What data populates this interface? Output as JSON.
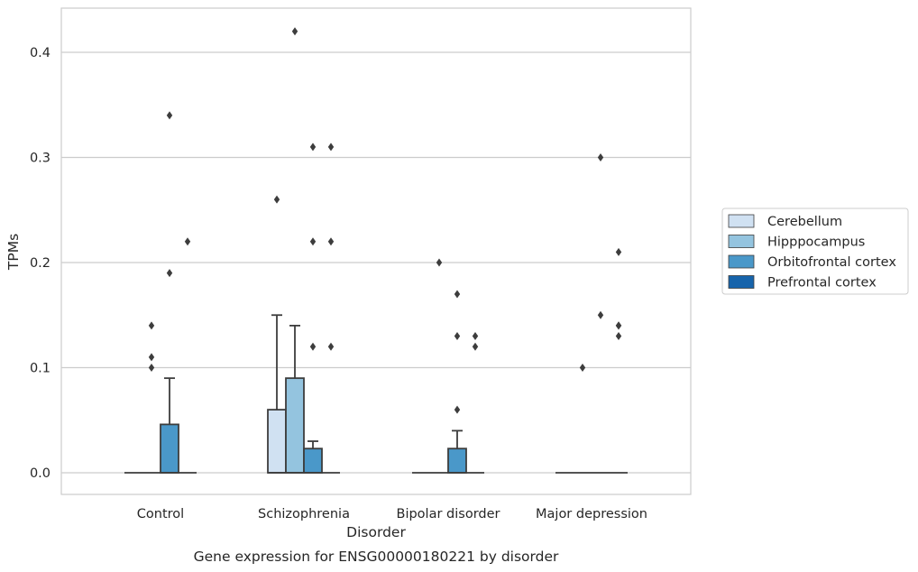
{
  "chart_data": {
    "type": "box",
    "caption": "Gene expression for ENSG00000180221 by disorder",
    "xlabel": "Disorder",
    "ylabel": "TPMs",
    "ylim": [
      -0.02,
      0.44
    ],
    "yticks": [
      0.0,
      0.1,
      0.2,
      0.3,
      0.4
    ],
    "ytick_labels": [
      "0.0",
      "0.1",
      "0.2",
      "0.3",
      "0.4"
    ],
    "grid": "horizontal",
    "legend_placement": "outside-right",
    "categories": [
      "Control",
      "Schizophrenia",
      "Bipolar disorder",
      "Major depression"
    ],
    "series": [
      {
        "name": "Cerebellum",
        "color": "#d0e1f2",
        "boxes": [
          {
            "q1": 0,
            "median": 0,
            "q3": 0,
            "whisker_low": 0,
            "whisker_high": 0,
            "outliers": []
          },
          {
            "q1": 0,
            "median": 0,
            "q3": 0.06,
            "whisker_low": 0,
            "whisker_high": 0.15,
            "outliers": [
              0.26
            ]
          },
          {
            "q1": 0,
            "median": 0,
            "q3": 0,
            "whisker_low": 0,
            "whisker_high": 0,
            "outliers": []
          },
          {
            "q1": 0,
            "median": 0,
            "q3": 0,
            "whisker_low": 0,
            "whisker_high": 0,
            "outliers": []
          }
        ]
      },
      {
        "name": "Hipppocampus",
        "color": "#94c4df",
        "boxes": [
          {
            "q1": 0,
            "median": 0,
            "q3": 0,
            "whisker_low": 0,
            "whisker_high": 0,
            "outliers": [
              0.1,
              0.11,
              0.14
            ]
          },
          {
            "q1": 0,
            "median": 0,
            "q3": 0.09,
            "whisker_low": 0,
            "whisker_high": 0.14,
            "outliers": [
              0.42
            ]
          },
          {
            "q1": 0,
            "median": 0,
            "q3": 0,
            "whisker_low": 0,
            "whisker_high": 0,
            "outliers": [
              0.2
            ]
          },
          {
            "q1": 0,
            "median": 0,
            "q3": 0,
            "whisker_low": 0,
            "whisker_high": 0,
            "outliers": [
              0.1
            ]
          }
        ]
      },
      {
        "name": "Orbitofrontal cortex",
        "color": "#4a98c9",
        "boxes": [
          {
            "q1": 0,
            "median": 0,
            "q3": 0.046,
            "whisker_low": 0,
            "whisker_high": 0.09,
            "outliers": [
              0.19,
              0.34
            ]
          },
          {
            "q1": 0,
            "median": 0,
            "q3": 0.023,
            "whisker_low": 0,
            "whisker_high": 0.03,
            "outliers": [
              0.12,
              0.22,
              0.31
            ]
          },
          {
            "q1": 0,
            "median": 0,
            "q3": 0.023,
            "whisker_low": 0,
            "whisker_high": 0.04,
            "outliers": [
              0.06,
              0.13,
              0.17
            ]
          },
          {
            "q1": 0,
            "median": 0,
            "q3": 0,
            "whisker_low": 0,
            "whisker_high": 0,
            "outliers": [
              0.15,
              0.3
            ]
          }
        ]
      },
      {
        "name": "Prefrontal cortex",
        "color": "#1764ab",
        "boxes": [
          {
            "q1": 0,
            "median": 0,
            "q3": 0,
            "whisker_low": 0,
            "whisker_high": 0,
            "outliers": [
              0.22
            ]
          },
          {
            "q1": 0,
            "median": 0,
            "q3": 0,
            "whisker_low": 0,
            "whisker_high": 0,
            "outliers": [
              0.12,
              0.22,
              0.31
            ]
          },
          {
            "q1": 0,
            "median": 0,
            "q3": 0,
            "whisker_low": 0,
            "whisker_high": 0,
            "outliers": [
              0.12
            ]
          },
          {
            "q1": 0,
            "median": 0,
            "q3": 0,
            "whisker_low": 0,
            "whisker_high": 0,
            "outliers": [
              0.13,
              0.14,
              0.21
            ]
          }
        ]
      }
    ],
    "extra_outliers": [
      {
        "category": 2,
        "series": 3,
        "value": 0.13
      },
      {
        "category": 3,
        "series": 3,
        "value": 0.14
      }
    ]
  }
}
